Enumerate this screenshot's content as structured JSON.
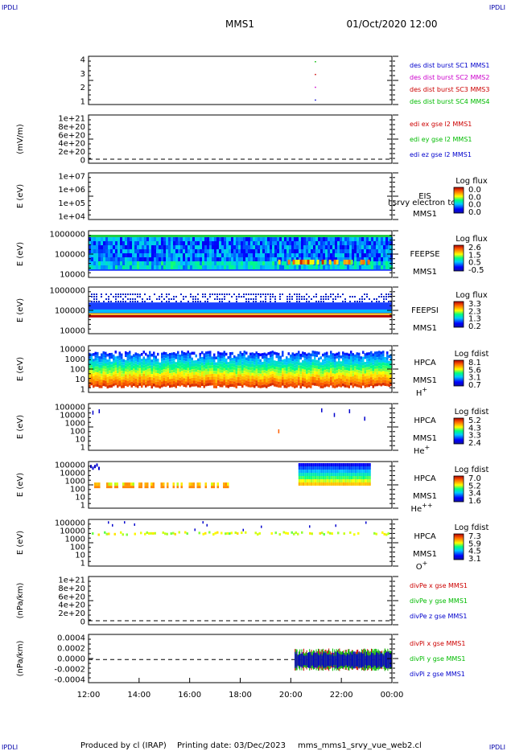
{
  "header": {
    "corner_left": "IPDLI",
    "corner_right": "IPDLI",
    "title": "MMS1",
    "datetime": "01/Oct/2020 12:00"
  },
  "footer": {
    "corner_left": "IPDLI",
    "corner_right": "IPDLI",
    "produced_by": "Produced by cl (IRAP)",
    "printing_date": "Printing date: 03/Dec/2023",
    "script_name": "mms_mms1_srvy_vue_web2.cl"
  },
  "x_axis": {
    "ticks": [
      "12:00",
      "14:00",
      "16:00",
      "18:00",
      "20:00",
      "22:00",
      "00:00"
    ]
  },
  "panels": [
    {
      "id": "burst",
      "ylabel": "",
      "yticks": [
        "4",
        "3",
        "2",
        "1"
      ],
      "legend": [
        {
          "text": "des dist burst SC1 MMS1",
          "color": "#0000cc"
        },
        {
          "text": "des dist burst SC2 MMS2",
          "color": "#cc00cc"
        },
        {
          "text": "des dist burst SC3 MMS3",
          "color": "#cc0000"
        },
        {
          "text": "des dist burst SC4 MMS4",
          "color": "#00bb00"
        }
      ]
    },
    {
      "id": "edi",
      "ylabel": "(mV/m)",
      "yticks": [
        "1e+21",
        "8e+20",
        "6e+20",
        "4e+20",
        "2e+20",
        "0"
      ],
      "legend": [
        {
          "text": "edi ex gse l2 MMS1",
          "color": "#cc0000"
        },
        {
          "text": "edi ey gse l2 MMS1",
          "color": "#00bb00"
        },
        {
          "text": "edi ez gse l2 MMS1",
          "color": "#0000cc"
        }
      ]
    },
    {
      "id": "eis",
      "ylabel": "E (eV)",
      "yticks": [
        "1e+07",
        "1e+06",
        "1e+05",
        "1e+04"
      ],
      "label_lines": [
        "EIS",
        "MMS1"
      ],
      "overlay_text": "l srvy electron to",
      "cbar_title": "Log flux",
      "cbar_ticks": [
        "0.0",
        "0.0",
        "0.0",
        "0.0"
      ]
    },
    {
      "id": "feepse",
      "ylabel": "E (eV)",
      "yticks": [
        "1000000",
        "100000",
        "10000"
      ],
      "label_lines": [
        "FEEPSE",
        "MMS1"
      ],
      "cbar_title": "Log flux",
      "cbar_ticks": [
        "2.6",
        "1.5",
        "0.5",
        "-0.5"
      ]
    },
    {
      "id": "feepsi",
      "ylabel": "E (eV)",
      "yticks": [
        "1000000",
        "100000",
        "10000"
      ],
      "label_lines": [
        "FEEPSI",
        "MMS1"
      ],
      "cbar_title": "Log flux",
      "cbar_ticks": [
        "3.3",
        "2.3",
        "1.3",
        "0.2"
      ]
    },
    {
      "id": "hpca_h",
      "ylabel": "E (eV)",
      "yticks": [
        "10000",
        "1000",
        "100",
        "10",
        "1"
      ],
      "label_lines": [
        "HPCA",
        "MMS1"
      ],
      "species": "H",
      "species_sup": "+",
      "cbar_title": "Log fdist",
      "cbar_ticks": [
        "8.1",
        "5.6",
        "3.1",
        "0.7"
      ]
    },
    {
      "id": "hpca_he",
      "ylabel": "E (eV)",
      "yticks": [
        "100000",
        "10000",
        "1000",
        "100",
        "10",
        "1"
      ],
      "label_lines": [
        "HPCA",
        "MMS1"
      ],
      "species": "He",
      "species_sup": "+",
      "cbar_title": "Log fdist",
      "cbar_ticks": [
        "5.2",
        "4.3",
        "3.3",
        "2.4"
      ]
    },
    {
      "id": "hpca_hepp",
      "ylabel": "E (eV)",
      "yticks": [
        "100000",
        "10000",
        "1000",
        "100",
        "10",
        "1"
      ],
      "label_lines": [
        "HPCA",
        "MMS1"
      ],
      "species": "He",
      "species_sup": "++",
      "cbar_title": "Log fdist",
      "cbar_ticks": [
        "7.0",
        "5.2",
        "3.4",
        "1.6"
      ]
    },
    {
      "id": "hpca_o",
      "ylabel": "E (eV)",
      "yticks": [
        "100000",
        "10000",
        "1000",
        "100",
        "10",
        "1"
      ],
      "label_lines": [
        "HPCA",
        "MMS1"
      ],
      "species": "O",
      "species_sup": "+",
      "cbar_title": "Log fdist",
      "cbar_ticks": [
        "7.3",
        "5.9",
        "4.5",
        "3.1"
      ]
    },
    {
      "id": "divpe",
      "ylabel": "(nPa/km)",
      "yticks": [
        "1e+21",
        "8e+20",
        "6e+20",
        "4e+20",
        "2e+20",
        "0"
      ],
      "legend": [
        {
          "text": "divPe x gse MMS1",
          "color": "#cc0000"
        },
        {
          "text": "divPe y gse MMS1",
          "color": "#00bb00"
        },
        {
          "text": "divPe z gse MMS1",
          "color": "#0000cc"
        }
      ]
    },
    {
      "id": "divpi",
      "ylabel": "(nPa/km)",
      "yticks": [
        "0.0004",
        "0.0002",
        "0.0000",
        "-0.0002",
        "-0.0004"
      ],
      "legend": [
        {
          "text": "divPi x gse MMS1",
          "color": "#cc0000"
        },
        {
          "text": "divPi y gse MMS1",
          "color": "#00bb00"
        },
        {
          "text": "divPi z gse MMS1",
          "color": "#0000cc"
        }
      ]
    }
  ],
  "chart_data": {
    "type": "heatmap",
    "x": [
      "12:00",
      "14:00",
      "16:00",
      "18:00",
      "20:00",
      "22:00",
      "00:00"
    ],
    "burst_marks": [
      {
        "sc": 1,
        "time": "20:57"
      },
      {
        "sc": 2,
        "time": "20:57"
      },
      {
        "sc": 3,
        "time": "20:57"
      },
      {
        "sc": 4,
        "time": "20:57"
      }
    ],
    "divpi_active_range": [
      "20:10",
      "00:00"
    ],
    "colors": {
      "blue": "#0000cc",
      "green": "#00bb00",
      "red": "#cc0000",
      "magenta": "#cc00cc"
    }
  }
}
